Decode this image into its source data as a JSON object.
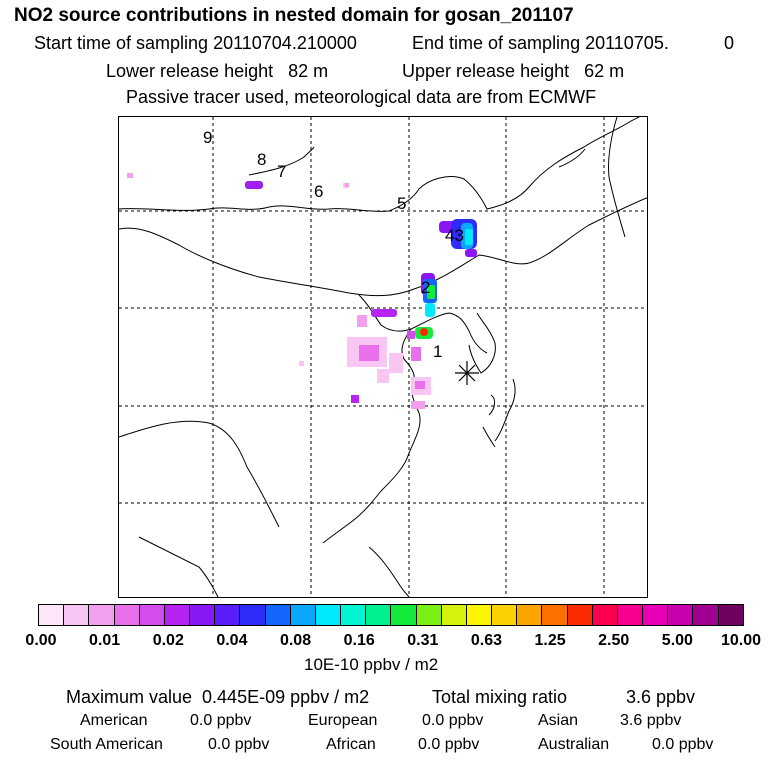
{
  "header": {
    "title": "NO2 source contributions in nested domain for gosan_201107",
    "start_label": "Start time of sampling 20110704.210000",
    "end_label": "End time of sampling 20110705.",
    "end_suffix": "0",
    "lower_label": "Lower release height   82 m",
    "upper_label": "Upper release height   62 m",
    "tracer_note": "Passive tracer used, meteorological data are from ECMWF"
  },
  "map": {
    "receptor_icon": "asterisk-icon",
    "source_labels": [
      {
        "id": "9",
        "text": "9"
      },
      {
        "id": "8",
        "text": "8"
      },
      {
        "id": "7",
        "text": "7"
      },
      {
        "id": "6",
        "text": "6"
      },
      {
        "id": "5",
        "text": "5"
      },
      {
        "id": "43",
        "text": "43"
      },
      {
        "id": "2",
        "text": "2"
      },
      {
        "id": "1",
        "text": "1"
      }
    ]
  },
  "colorbar": {
    "colors": [
      "#fde6fa",
      "#f9c6f4",
      "#f2a0ee",
      "#e870ea",
      "#d44cee",
      "#b624f2",
      "#8a18f6",
      "#5a1cf8",
      "#2e2cfa",
      "#1466fc",
      "#0aa8fd",
      "#00e8fc",
      "#00f5d2",
      "#00f090",
      "#14ea3c",
      "#7af014",
      "#d4f20a",
      "#fcf400",
      "#fcd000",
      "#fca400",
      "#fc7000",
      "#fc2a00",
      "#fc0050",
      "#f80090",
      "#e800b8",
      "#c800b0",
      "#a00090",
      "#700060"
    ],
    "ticks": [
      "0.00",
      "0.01",
      "0.02",
      "0.04",
      "0.08",
      "0.16",
      "0.31",
      "0.63",
      "1.25",
      "2.50",
      "5.00",
      "10.00"
    ],
    "units": "10E-10 ppbv / m2"
  },
  "summary": {
    "max_value": "Maximum value  0.445E-09 ppbv / m2",
    "total_label": "Total mixing ratio",
    "total_value": "3.6 ppbv",
    "sources": [
      {
        "name": "American",
        "value": "0.0 ppbv"
      },
      {
        "name": "European",
        "value": "0.0 ppbv"
      },
      {
        "name": "Asian",
        "value": "3.6 ppbv"
      },
      {
        "name": "South American",
        "value": "0.0 ppbv"
      },
      {
        "name": "African",
        "value": "0.0 ppbv"
      },
      {
        "name": "Australian",
        "value": "0.0 ppbv"
      }
    ]
  }
}
